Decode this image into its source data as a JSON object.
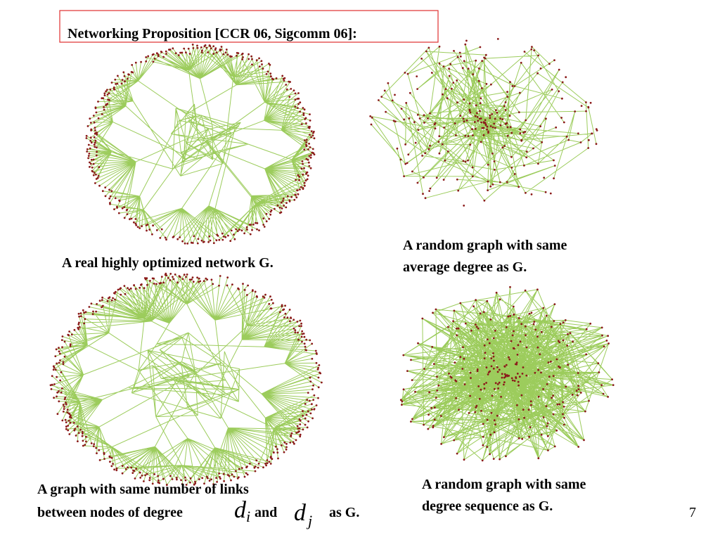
{
  "title": "Networking Proposition [CCR 06, Sigcomm 06]:",
  "captions": {
    "real": "A real highly optimized network G.",
    "average": [
      "A random graph with same",
      "average degree as G."
    ],
    "links": {
      "line1": "A graph  with  same  number  of   links",
      "line2": "between nodes of degree",
      "math1": {
        "base": "d",
        "sub": "i"
      },
      "and": "and",
      "math2": {
        "base": "d",
        "sub": "j"
      },
      "end": "as G."
    },
    "sequence": [
      "A random graph with same",
      "degree sequence as G."
    ]
  },
  "page_number": "7"
}
